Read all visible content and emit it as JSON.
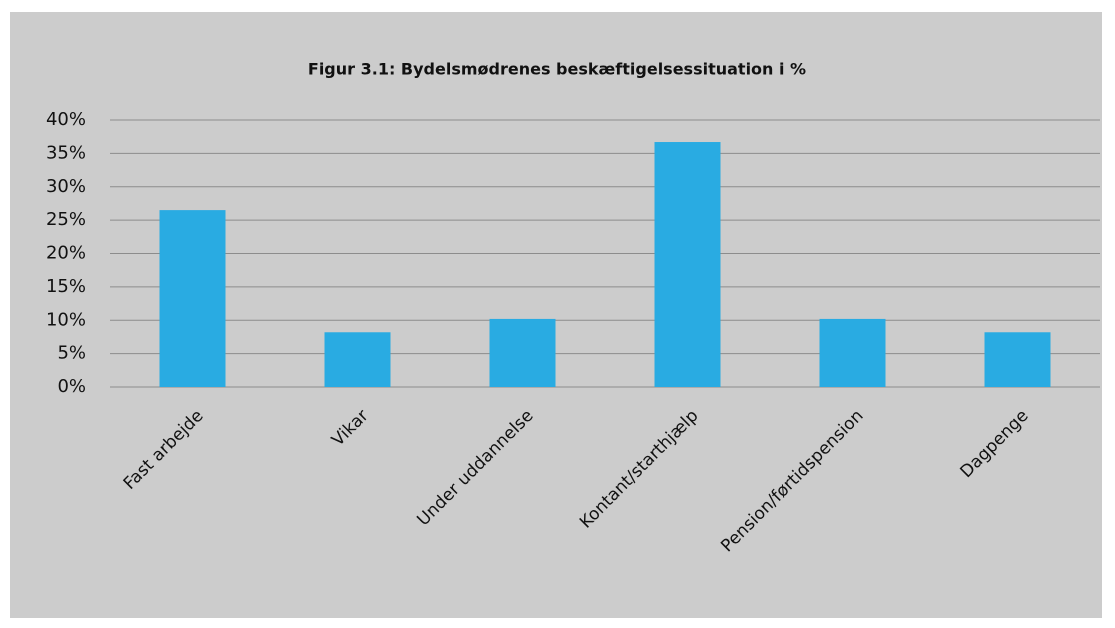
{
  "chart_data": {
    "type": "bar",
    "title": "Figur 3.1: Bydelsmødrenes beskæftigelsessituation i %",
    "categories": [
      "Fast arbejde",
      "Vikar",
      "Under uddannelse",
      "Kontant/starthjælp",
      "Pension/førtidspension",
      "Dagpenge"
    ],
    "values": [
      26.5,
      8.2,
      10.2,
      36.7,
      10.2,
      8.2
    ],
    "color": "#29abe2",
    "ylim": [
      0,
      40
    ],
    "yticks": [
      {
        "value": 0,
        "label": "0%"
      },
      {
        "value": 5,
        "label": "5%"
      },
      {
        "value": 10,
        "label": "10%"
      },
      {
        "value": 15,
        "label": "15%"
      },
      {
        "value": 20,
        "label": "20%"
      },
      {
        "value": 25,
        "label": "25%"
      },
      {
        "value": 30,
        "label": "30%"
      },
      {
        "value": 35,
        "label": "35%"
      },
      {
        "value": 40,
        "label": "40%"
      }
    ],
    "grid": true
  }
}
